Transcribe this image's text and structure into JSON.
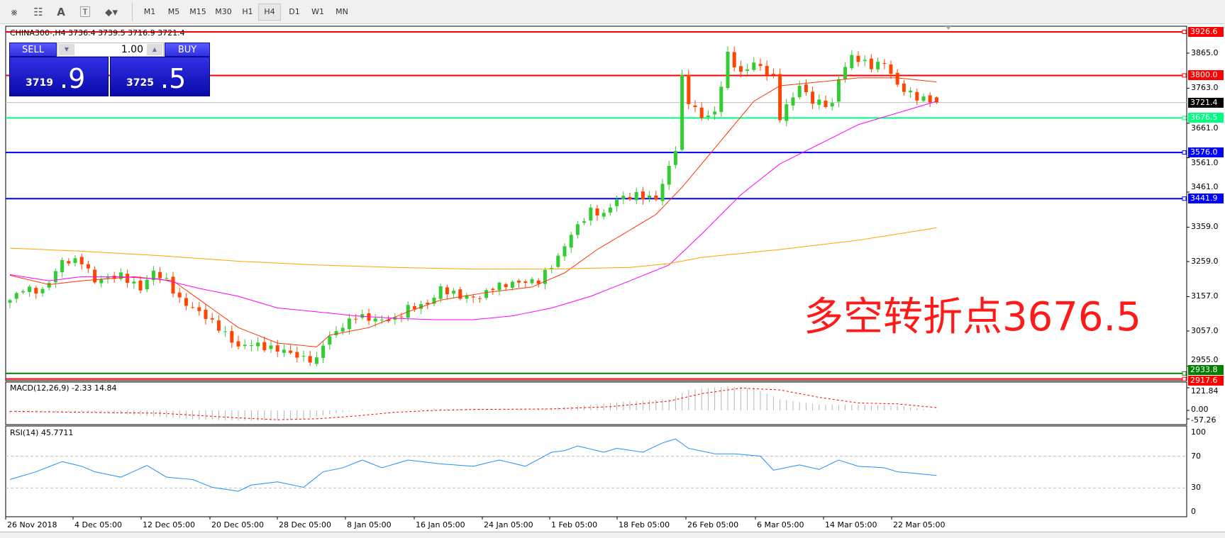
{
  "toolbar": {
    "icons": [
      "indicators-icon",
      "periods-separator-icon",
      "text-icon",
      "text-label-icon",
      "arrows-dropdown-icon"
    ],
    "timeframes": [
      "M1",
      "M5",
      "M15",
      "M30",
      "H1",
      "H4",
      "D1",
      "W1",
      "MN"
    ],
    "active_timeframe": "H4"
  },
  "chart": {
    "header": "CHINA300-,H4  3736.4 3739.5 3716.9 3721.4",
    "overlay_text": "多空转折点3676.5",
    "overlay_color": "#ff1a1a",
    "bull_color": "#32cd32",
    "bear_color": "#ff4500"
  },
  "trade_panel": {
    "sell_label": "SELL",
    "buy_label": "BUY",
    "volume": "1.00",
    "sell_price_main": "3719",
    "sell_price_big": ".9",
    "buy_price_main": "3725",
    "buy_price_big": ".5"
  },
  "price_axis": [
    "3865.0",
    "3763.0",
    "3661.0",
    "3561.0",
    "3461.0",
    "3359.0",
    "3259.0",
    "3157.0",
    "3057.0",
    "2955.0"
  ],
  "levels": [
    {
      "price": "3926.6",
      "color": "#ff0000"
    },
    {
      "price": "3800.0",
      "color": "#ff0000"
    },
    {
      "price": "3721.4",
      "color": "#000000",
      "line": "#c0c0c0"
    },
    {
      "price": "3676.5",
      "color": "#00ff7f"
    },
    {
      "price": "3576.0",
      "color": "#0000ff"
    },
    {
      "price": "3441.9",
      "color": "#0000ff"
    },
    {
      "price": "2933.8",
      "color": "#008000"
    },
    {
      "price": "2917.6",
      "color": "#ff0000"
    }
  ],
  "time_axis": [
    "26 Nov 2018",
    "4 Dec 05:00",
    "12 Dec 05:00",
    "20 Dec 05:00",
    "28 Dec 05:00",
    "8 Jan 05:00",
    "16 Jan 05:00",
    "24 Jan 05:00",
    "1 Feb 05:00",
    "18 Feb 05:00",
    "26 Feb 05:00",
    "6 Mar 05:00",
    "14 Mar 05:00",
    "22 Mar 05:00"
  ],
  "last_candle": {
    "open": 3736.4,
    "high": 3739.5,
    "low": 3716.9,
    "close": 3721.4
  },
  "price_path": [
    [
      0,
      3147
    ],
    [
      2,
      3180
    ],
    [
      5,
      3172
    ],
    [
      8,
      3260
    ],
    [
      11,
      3260
    ],
    [
      13,
      3203
    ],
    [
      17,
      3219
    ],
    [
      20,
      3180
    ],
    [
      22,
      3230
    ],
    [
      24,
      3203
    ],
    [
      26,
      3147
    ],
    [
      29,
      3113
    ],
    [
      32,
      3067
    ],
    [
      35,
      3010
    ],
    [
      37,
      3021
    ],
    [
      39,
      3010
    ],
    [
      42,
      3000
    ],
    [
      45,
      2977
    ],
    [
      47,
      2972
    ],
    [
      48,
      3021
    ],
    [
      50,
      3056
    ],
    [
      53,
      3101
    ],
    [
      56,
      3090
    ],
    [
      59,
      3090
    ],
    [
      61,
      3124
    ],
    [
      64,
      3135
    ],
    [
      66,
      3180
    ],
    [
      69,
      3158
    ],
    [
      72,
      3154
    ],
    [
      74,
      3185
    ],
    [
      78,
      3199
    ],
    [
      81,
      3203
    ],
    [
      84,
      3271
    ],
    [
      86,
      3339
    ],
    [
      89,
      3407
    ],
    [
      91,
      3395
    ],
    [
      93,
      3441
    ],
    [
      96,
      3452
    ],
    [
      99,
      3441
    ],
    [
      101,
      3532
    ],
    [
      102,
      3588
    ],
    [
      103,
      3793
    ],
    [
      104,
      3725
    ],
    [
      106,
      3679
    ],
    [
      108,
      3690
    ],
    [
      110,
      3860
    ],
    [
      112,
      3804
    ],
    [
      114,
      3838
    ],
    [
      117,
      3793
    ],
    [
      118,
      3679
    ],
    [
      121,
      3770
    ],
    [
      123,
      3725
    ],
    [
      126,
      3713
    ],
    [
      127,
      3793
    ],
    [
      129,
      3856
    ],
    [
      132,
      3827
    ],
    [
      134,
      3838
    ],
    [
      136,
      3770
    ],
    [
      139,
      3736
    ],
    [
      142,
      3721.4
    ]
  ],
  "moving_averages": [
    {
      "color": "#ff3300",
      "points": [
        [
          0,
          3219
        ],
        [
          6,
          3192
        ],
        [
          11,
          3203
        ],
        [
          19,
          3215
        ],
        [
          25,
          3203
        ],
        [
          30,
          3135
        ],
        [
          35,
          3067
        ],
        [
          41,
          3022
        ],
        [
          47,
          3011
        ],
        [
          49,
          3045
        ],
        [
          55,
          3067
        ],
        [
          61,
          3113
        ],
        [
          66,
          3147
        ],
        [
          73,
          3169
        ],
        [
          80,
          3185
        ],
        [
          85,
          3226
        ],
        [
          90,
          3294
        ],
        [
          94,
          3339
        ],
        [
          99,
          3396
        ],
        [
          103,
          3475
        ],
        [
          106,
          3543
        ],
        [
          110,
          3634
        ],
        [
          114,
          3725
        ],
        [
          118,
          3770
        ],
        [
          124,
          3781
        ],
        [
          130,
          3793
        ],
        [
          136,
          3793
        ],
        [
          142,
          3781
        ]
      ]
    },
    {
      "color": "#ff00ff",
      "points": [
        [
          0,
          3221
        ],
        [
          6,
          3203
        ],
        [
          11,
          3215
        ],
        [
          17,
          3215
        ],
        [
          23,
          3208
        ],
        [
          29,
          3181
        ],
        [
          35,
          3158
        ],
        [
          41,
          3124
        ],
        [
          47,
          3113
        ],
        [
          53,
          3101
        ],
        [
          59,
          3094
        ],
        [
          65,
          3090
        ],
        [
          71,
          3090
        ],
        [
          77,
          3101
        ],
        [
          83,
          3124
        ],
        [
          89,
          3158
        ],
        [
          95,
          3203
        ],
        [
          101,
          3249
        ],
        [
          106,
          3339
        ],
        [
          112,
          3453
        ],
        [
          118,
          3543
        ],
        [
          124,
          3600
        ],
        [
          130,
          3657
        ],
        [
          136,
          3691
        ],
        [
          142,
          3725
        ]
      ]
    },
    {
      "color": "#ffa500",
      "points": [
        [
          0,
          3298
        ],
        [
          11,
          3289
        ],
        [
          23,
          3276
        ],
        [
          35,
          3260
        ],
        [
          47,
          3249
        ],
        [
          59,
          3242
        ],
        [
          71,
          3237
        ],
        [
          83,
          3237
        ],
        [
          95,
          3242
        ],
        [
          101,
          3253
        ],
        [
          106,
          3271
        ],
        [
          118,
          3294
        ],
        [
          130,
          3321
        ],
        [
          142,
          3357
        ]
      ]
    }
  ],
  "macd": {
    "label": "MACD(12,26,9) -2.33 14.84",
    "axis": [
      "121.84",
      "0.00",
      "-57.26"
    ],
    "histogram_color": "#b4b4b4",
    "signal_color": "#ff0000",
    "main": [
      [
        0,
        -15
      ],
      [
        11,
        -8
      ],
      [
        17,
        -20
      ],
      [
        29,
        -50
      ],
      [
        38,
        -55
      ],
      [
        44,
        -50
      ],
      [
        49,
        -20
      ],
      [
        54,
        5
      ],
      [
        59,
        0
      ],
      [
        65,
        10
      ],
      [
        71,
        8
      ],
      [
        80,
        5
      ],
      [
        87,
        25
      ],
      [
        95,
        50
      ],
      [
        101,
        60
      ],
      [
        104,
        110
      ],
      [
        110,
        130
      ],
      [
        114,
        120
      ],
      [
        118,
        60
      ],
      [
        124,
        30
      ],
      [
        130,
        30
      ],
      [
        136,
        25
      ],
      [
        142,
        -2.33
      ]
    ],
    "signal": [
      [
        0,
        -5
      ],
      [
        11,
        -10
      ],
      [
        23,
        -15
      ],
      [
        35,
        -40
      ],
      [
        41,
        -50
      ],
      [
        47,
        -45
      ],
      [
        53,
        -30
      ],
      [
        59,
        -10
      ],
      [
        65,
        0
      ],
      [
        71,
        5
      ],
      [
        83,
        8
      ],
      [
        92,
        20
      ],
      [
        101,
        50
      ],
      [
        106,
        90
      ],
      [
        112,
        120
      ],
      [
        118,
        110
      ],
      [
        124,
        70
      ],
      [
        130,
        40
      ],
      [
        136,
        35
      ],
      [
        142,
        14.84
      ]
    ]
  },
  "rsi": {
    "label": "RSI(14) 45.7711",
    "axis": [
      "100",
      "70",
      "30",
      "0"
    ],
    "color": "#1e90ff",
    "levels": [
      70,
      30
    ],
    "points": [
      [
        0,
        40.6
      ],
      [
        4,
        50.4
      ],
      [
        8,
        63.2
      ],
      [
        11,
        57.3
      ],
      [
        13,
        50.4
      ],
      [
        17,
        43.6
      ],
      [
        21,
        58.3
      ],
      [
        24,
        43.6
      ],
      [
        28,
        40.6
      ],
      [
        31,
        30.8
      ],
      [
        35,
        25.9
      ],
      [
        37,
        33.7
      ],
      [
        41,
        37.7
      ],
      [
        45,
        30.8
      ],
      [
        48,
        50.4
      ],
      [
        51,
        55.4
      ],
      [
        54,
        65.2
      ],
      [
        57,
        55.4
      ],
      [
        61,
        65.2
      ],
      [
        66,
        60.3
      ],
      [
        71,
        57.3
      ],
      [
        75,
        65.2
      ],
      [
        79,
        57.3
      ],
      [
        83,
        75
      ],
      [
        85,
        77
      ],
      [
        87,
        82.9
      ],
      [
        91,
        75
      ],
      [
        93,
        79.9
      ],
      [
        97,
        75
      ],
      [
        100,
        86.8
      ],
      [
        102,
        91.7
      ],
      [
        104,
        79.9
      ],
      [
        108,
        73
      ],
      [
        111,
        73
      ],
      [
        115,
        70.1
      ],
      [
        117,
        52.4
      ],
      [
        121,
        59
      ],
      [
        124,
        53.4
      ],
      [
        127,
        65.2
      ],
      [
        130,
        57.3
      ],
      [
        134,
        55.4
      ],
      [
        136,
        50.4
      ],
      [
        142,
        45.8
      ]
    ]
  }
}
